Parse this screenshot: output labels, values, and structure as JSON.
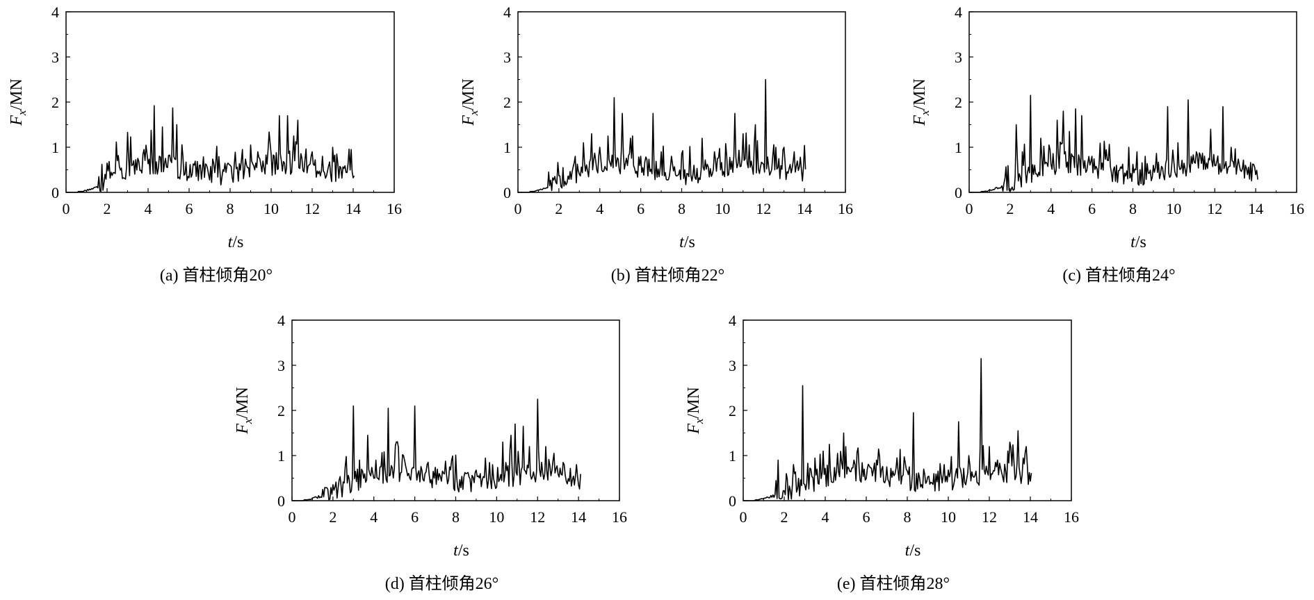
{
  "chart_data": [
    {
      "type": "line",
      "caption": "(a) 首柱倾角20°",
      "xlabel_main": "t",
      "xlabel_unit": "/s",
      "ylabel_main": "F",
      "ylabel_sub": "x",
      "ylabel_unit": "/MN",
      "xlim": [
        0,
        16
      ],
      "ylim": [
        0,
        4
      ],
      "xticks": [
        "0",
        "2",
        "4",
        "6",
        "8",
        "10",
        "12",
        "14",
        "16"
      ],
      "yticks": [
        "0",
        "1",
        "2",
        "3",
        "4"
      ],
      "t_end": 14.05,
      "peaks": [
        [
          1.6,
          0.35
        ],
        [
          2.0,
          0.65
        ],
        [
          2.5,
          0.7
        ],
        [
          3.0,
          1.33
        ],
        [
          3.3,
          0.7
        ],
        [
          3.8,
          0.95
        ],
        [
          4.3,
          1.92
        ],
        [
          4.7,
          1.45
        ],
        [
          5.2,
          1.87
        ],
        [
          5.4,
          1.5
        ],
        [
          5.7,
          0.8
        ],
        [
          6.5,
          0.6
        ],
        [
          8.0,
          0.6
        ],
        [
          8.6,
          0.95
        ],
        [
          9.0,
          1.05
        ],
        [
          9.5,
          0.6
        ],
        [
          10.0,
          0.85
        ],
        [
          10.4,
          1.7
        ],
        [
          10.8,
          1.7
        ],
        [
          11.1,
          1.25
        ],
        [
          11.3,
          1.6
        ],
        [
          12.0,
          0.9
        ],
        [
          12.5,
          0.8
        ],
        [
          13.2,
          0.85
        ],
        [
          13.9,
          0.95
        ]
      ]
    },
    {
      "type": "line",
      "caption": "(b) 首柱倾角22°",
      "xlabel_main": "t",
      "xlabel_unit": "/s",
      "ylabel_main": "F",
      "ylabel_sub": "x",
      "ylabel_unit": "/MN",
      "xlim": [
        0,
        16
      ],
      "ylim": [
        0,
        4
      ],
      "xticks": [
        "0",
        "2",
        "4",
        "6",
        "8",
        "10",
        "12",
        "14",
        "16"
      ],
      "yticks": [
        "0",
        "1",
        "2",
        "3",
        "4"
      ],
      "t_end": 14.05,
      "peaks": [
        [
          1.5,
          0.45
        ],
        [
          2.2,
          0.55
        ],
        [
          2.8,
          0.8
        ],
        [
          3.2,
          1.1
        ],
        [
          3.6,
          1.3
        ],
        [
          4.0,
          1.0
        ],
        [
          4.4,
          1.25
        ],
        [
          4.7,
          2.1
        ],
        [
          5.1,
          1.75
        ],
        [
          5.5,
          1.2
        ],
        [
          6.0,
          0.8
        ],
        [
          6.6,
          1.75
        ],
        [
          7.0,
          0.9
        ],
        [
          7.5,
          0.8
        ],
        [
          8.0,
          0.85
        ],
        [
          8.6,
          0.6
        ],
        [
          9.0,
          1.2
        ],
        [
          9.6,
          0.9
        ],
        [
          10.2,
          0.8
        ],
        [
          10.6,
          1.75
        ],
        [
          11.0,
          1.3
        ],
        [
          11.6,
          1.5
        ],
        [
          12.1,
          2.5
        ],
        [
          12.6,
          1.0
        ],
        [
          13.0,
          1.0
        ],
        [
          13.5,
          0.9
        ]
      ]
    },
    {
      "type": "line",
      "caption": "(c) 首柱倾角24°",
      "xlabel_main": "t",
      "xlabel_unit": "/s",
      "ylabel_main": "F",
      "ylabel_sub": "x",
      "ylabel_unit": "/MN",
      "xlim": [
        0,
        16
      ],
      "ylim": [
        0,
        4
      ],
      "xticks": [
        "0",
        "2",
        "4",
        "6",
        "8",
        "10",
        "12",
        "14",
        "16"
      ],
      "yticks": [
        "0",
        "1",
        "2",
        "3",
        "4"
      ],
      "t_end": 14.1,
      "peaks": [
        [
          1.7,
          0.2
        ],
        [
          2.3,
          1.5
        ],
        [
          2.6,
          0.9
        ],
        [
          3.0,
          2.15
        ],
        [
          3.5,
          1.2
        ],
        [
          3.9,
          1.05
        ],
        [
          4.3,
          1.6
        ],
        [
          4.6,
          1.8
        ],
        [
          4.9,
          1.35
        ],
        [
          5.2,
          1.85
        ],
        [
          5.5,
          1.7
        ],
        [
          6.0,
          0.8
        ],
        [
          6.5,
          0.65
        ],
        [
          7.2,
          0.6
        ],
        [
          7.8,
          1.0
        ],
        [
          8.2,
          0.9
        ],
        [
          8.6,
          0.8
        ],
        [
          9.0,
          0.6
        ],
        [
          9.7,
          1.9
        ],
        [
          10.2,
          1.1
        ],
        [
          10.7,
          2.05
        ],
        [
          11.1,
          0.9
        ],
        [
          11.8,
          1.4
        ],
        [
          12.4,
          1.9
        ],
        [
          12.8,
          1.0
        ],
        [
          13.5,
          0.6
        ]
      ]
    },
    {
      "type": "line",
      "caption": "(d) 首柱倾角26°",
      "xlabel_main": "t",
      "xlabel_unit": "/s",
      "ylabel_main": "F",
      "ylabel_sub": "x",
      "ylabel_unit": "/MN",
      "xlim": [
        0,
        16
      ],
      "ylim": [
        0,
        4
      ],
      "xticks": [
        "0",
        "2",
        "4",
        "6",
        "8",
        "10",
        "12",
        "14",
        "16"
      ],
      "yticks": [
        "0",
        "1",
        "2",
        "3",
        "4"
      ],
      "t_end": 14.1,
      "peaks": [
        [
          1.5,
          0.25
        ],
        [
          2.1,
          0.3
        ],
        [
          2.6,
          0.75
        ],
        [
          3.0,
          2.1
        ],
        [
          3.3,
          0.9
        ],
        [
          3.7,
          1.45
        ],
        [
          4.1,
          0.9
        ],
        [
          4.7,
          2.05
        ],
        [
          5.1,
          1.3
        ],
        [
          5.5,
          0.9
        ],
        [
          6.0,
          2.1
        ],
        [
          6.5,
          0.6
        ],
        [
          7.2,
          0.6
        ],
        [
          7.8,
          0.9
        ],
        [
          8.5,
          0.6
        ],
        [
          9.2,
          0.6
        ],
        [
          9.8,
          0.8
        ],
        [
          10.3,
          1.3
        ],
        [
          10.7,
          1.45
        ],
        [
          10.9,
          1.7
        ],
        [
          11.3,
          1.65
        ],
        [
          11.6,
          1.2
        ],
        [
          12.0,
          2.25
        ],
        [
          12.4,
          1.2
        ],
        [
          12.8,
          1.05
        ],
        [
          13.3,
          0.8
        ],
        [
          13.9,
          0.8
        ]
      ]
    },
    {
      "type": "line",
      "caption": "(e) 首柱倾角28°",
      "xlabel_main": "t",
      "xlabel_unit": "/s",
      "ylabel_main": "F",
      "ylabel_sub": "x",
      "ylabel_unit": "/MN",
      "xlim": [
        0,
        16
      ],
      "ylim": [
        0,
        4
      ],
      "xticks": [
        "0",
        "2",
        "4",
        "6",
        "8",
        "10",
        "12",
        "14",
        "16"
      ],
      "yticks": [
        "0",
        "1",
        "2",
        "3",
        "4"
      ],
      "t_end": 14.05,
      "peaks": [
        [
          1.7,
          0.9
        ],
        [
          2.1,
          0.6
        ],
        [
          2.5,
          0.6
        ],
        [
          2.9,
          2.55
        ],
        [
          3.3,
          0.7
        ],
        [
          3.9,
          1.1
        ],
        [
          4.2,
          1.25
        ],
        [
          4.6,
          1.05
        ],
        [
          4.9,
          1.5
        ],
        [
          5.4,
          0.9
        ],
        [
          5.9,
          0.7
        ],
        [
          6.5,
          0.9
        ],
        [
          7.0,
          0.75
        ],
        [
          7.5,
          0.95
        ],
        [
          7.9,
          0.85
        ],
        [
          8.3,
          1.95
        ],
        [
          8.8,
          0.7
        ],
        [
          9.3,
          0.6
        ],
        [
          9.8,
          0.8
        ],
        [
          10.5,
          1.75
        ],
        [
          11.0,
          1.0
        ],
        [
          11.6,
          3.15
        ],
        [
          12.0,
          1.2
        ],
        [
          12.4,
          0.9
        ],
        [
          12.9,
          1.1
        ],
        [
          13.4,
          1.55
        ],
        [
          13.8,
          1.2
        ]
      ]
    }
  ]
}
